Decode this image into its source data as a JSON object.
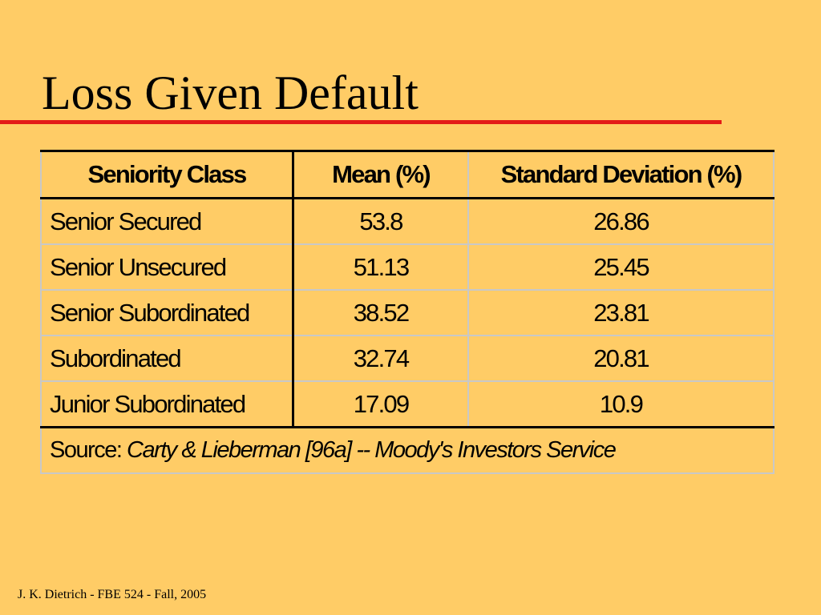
{
  "slide": {
    "title": "Loss Given Default",
    "footer": "J. K. Dietrich - FBE 524 - Fall, 2005"
  },
  "table": {
    "headers": [
      "Seniority Class",
      "Mean (%)",
      "Standard Deviation (%)"
    ],
    "rows": [
      {
        "class": "Senior Secured",
        "mean": "53.8",
        "sd": "26.86"
      },
      {
        "class": "Senior Unsecured",
        "mean": "51.13",
        "sd": "25.45"
      },
      {
        "class": "Senior Subordinated",
        "mean": "38.52",
        "sd": "23.81"
      },
      {
        "class": "Subordinated",
        "mean": "32.74",
        "sd": "20.81"
      },
      {
        "class": "Junior Subordinated",
        "mean": "17.09",
        "sd": "10.9"
      }
    ],
    "source_label": "Source:",
    "source_citation": "Carty & Lieberman [96a] -- Moody's Investors Service"
  },
  "colors": {
    "background": "#ffcc66",
    "rule": "#e41b17"
  }
}
